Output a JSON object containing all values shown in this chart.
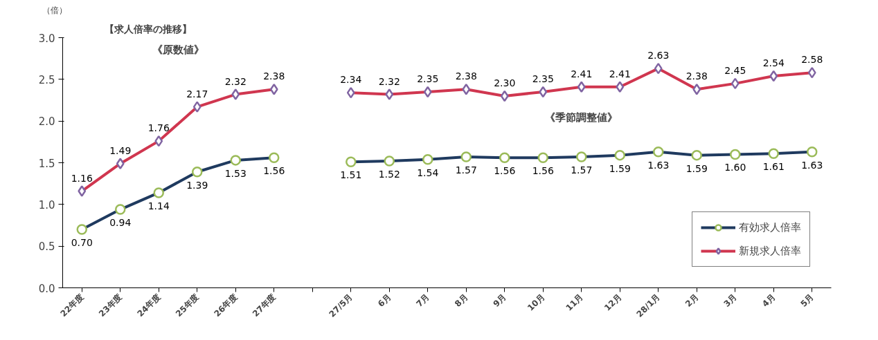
{
  "chart_data": {
    "type": "line",
    "title": "【求人倍率の推移】",
    "ylabel": "（倍）",
    "categories": [
      "22年度",
      "23年度",
      "24年度",
      "25年度",
      "26年度",
      "27年度",
      null,
      "27/5月",
      "6月",
      "7月",
      "8月",
      "9月",
      "10月",
      "11月",
      "12月",
      "28/1月",
      "2月",
      "3月",
      "4月",
      "5月"
    ],
    "series": [
      {
        "name": "有効求人倍率",
        "color": "#1f3a5f",
        "marker": "circle",
        "values": [
          0.7,
          0.94,
          1.14,
          1.39,
          1.53,
          1.56,
          null,
          1.51,
          1.52,
          1.54,
          1.57,
          1.56,
          1.56,
          1.57,
          1.59,
          1.63,
          1.59,
          1.6,
          1.61,
          1.63
        ],
        "value_labels": [
          "0.70",
          "0.94",
          "1.14",
          "1.39",
          "1.53",
          "1.56",
          null,
          "1.51",
          "1.52",
          "1.54",
          "1.57",
          "1.56",
          "1.56",
          "1.57",
          "1.59",
          "1.63",
          "1.59",
          "1.60",
          "1.61",
          "1.63"
        ]
      },
      {
        "name": "新規求人倍率",
        "color": "#d0364f",
        "marker": "diamond",
        "values": [
          1.16,
          1.49,
          1.76,
          2.17,
          2.32,
          2.38,
          null,
          2.34,
          2.32,
          2.35,
          2.38,
          2.3,
          2.35,
          2.41,
          2.41,
          2.63,
          2.38,
          2.45,
          2.54,
          2.58
        ],
        "value_labels": [
          "1.16",
          "1.49",
          "1.76",
          "2.17",
          "2.32",
          "2.38",
          null,
          "2.34",
          "2.32",
          "2.35",
          "2.38",
          "2.30",
          "2.35",
          "2.41",
          "2.41",
          "2.63",
          "2.38",
          "2.45",
          "2.54",
          "2.58"
        ]
      }
    ],
    "ylim": [
      0,
      3
    ],
    "yticks": [
      {
        "value": 0,
        "label": "0.0"
      },
      0.5,
      {
        "value": 1,
        "label": "1.0"
      },
      1.5,
      {
        "value": 2,
        "label": "2.0"
      },
      2.5,
      {
        "value": 3,
        "label": "3.0"
      }
    ],
    "annotations": [
      "《原数値》",
      "《季節調整値》"
    ],
    "legend": "bottom right",
    "grid": false,
    "line_style": "solid"
  }
}
